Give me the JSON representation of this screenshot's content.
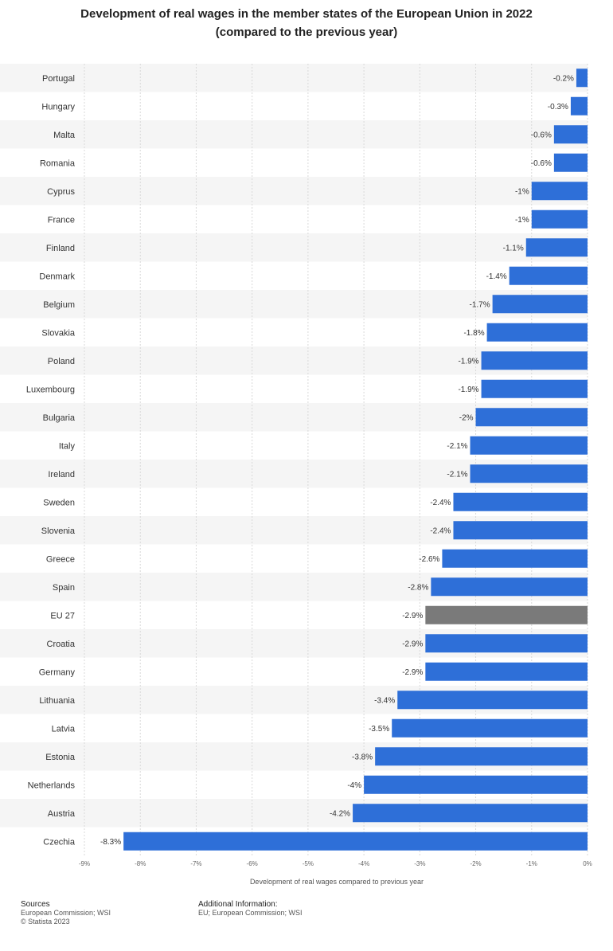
{
  "title_line1": "Development of real wages in the member states of the European Union in 2022",
  "title_line2": "(compared to the previous year)",
  "footer": {
    "sources_label": "Sources",
    "sources_line1": "European Commission; WSI",
    "sources_line2": "© Statista 2023",
    "info_label": "Additional Information:",
    "info_line1": "EU; European Commission; WSI"
  },
  "colors": {
    "bar": "#2e6fd8",
    "highlight": "#7a7a7a",
    "band": "#f5f5f5",
    "grid": "#d9d9d9"
  },
  "chart_data": {
    "type": "bar",
    "orientation": "horizontal",
    "title": "Development of real wages in the member states of the European Union in 2022 (compared to the previous year)",
    "xlabel": "Development of real wages compared to previous year",
    "ylabel": "",
    "xlim": [
      -9,
      0
    ],
    "ticks": [
      -9,
      -8,
      -7,
      -6,
      -5,
      -4,
      -3,
      -2,
      -1,
      0
    ],
    "tick_labels": [
      "-9%",
      "-8%",
      "-7%",
      "-6%",
      "-5%",
      "-4%",
      "-3%",
      "-2%",
      "-1%",
      "0%"
    ],
    "grid": true,
    "categories": [
      "Portugal",
      "Hungary",
      "Malta",
      "Romania",
      "Cyprus",
      "France",
      "Finland",
      "Denmark",
      "Belgium",
      "Slovakia",
      "Poland",
      "Luxembourg",
      "Bulgaria",
      "Italy",
      "Ireland",
      "Sweden",
      "Slovenia",
      "Greece",
      "Spain",
      "EU 27",
      "Croatia",
      "Germany",
      "Lithuania",
      "Latvia",
      "Estonia",
      "Netherlands",
      "Austria",
      "Czechia"
    ],
    "values": [
      -0.2,
      -0.3,
      -0.6,
      -0.6,
      -1,
      -1,
      -1.1,
      -1.4,
      -1.7,
      -1.8,
      -1.9,
      -1.9,
      -2,
      -2.1,
      -2.1,
      -2.4,
      -2.4,
      -2.6,
      -2.8,
      -2.9,
      -2.9,
      -2.9,
      -3.4,
      -3.5,
      -3.8,
      -4,
      -4.2,
      -8.3
    ],
    "data_labels": [
      "-0.2%",
      "-0.3%",
      "-0.6%",
      "-0.6%",
      "-1%",
      "-1%",
      "-1.1%",
      "-1.4%",
      "-1.7%",
      "-1.8%",
      "-1.9%",
      "-1.9%",
      "-2%",
      "-2.1%",
      "-2.1%",
      "-2.4%",
      "-2.4%",
      "-2.6%",
      "-2.8%",
      "-2.9%",
      "-2.9%",
      "-2.9%",
      "-3.4%",
      "-3.5%",
      "-3.8%",
      "-4%",
      "-4.2%",
      "-8.3%"
    ],
    "highlight_category": "EU 27"
  }
}
